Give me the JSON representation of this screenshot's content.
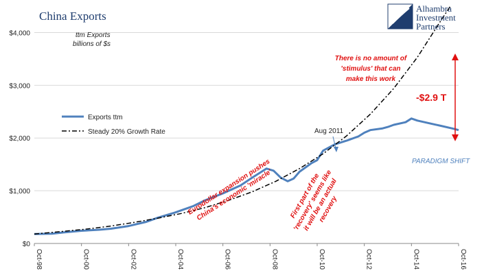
{
  "header": {
    "title": "China Exports",
    "units_line1": "ttm Exports",
    "units_line2": "billions of $s"
  },
  "logo": {
    "line1": "Alhambra",
    "line2": "Investment",
    "line3": "Partners"
  },
  "annotations": {
    "stimulus": [
      "There is no amount of",
      "'stimulus' that can",
      "make this work"
    ],
    "gap": "-$2.9 T",
    "aug": "Aug 2011",
    "paradigm": "PARADIGM SHIFT",
    "eurodollar": [
      "Eurodollar expansion pushes",
      "China's economic 'miracle'"
    ],
    "recovery": [
      "First part of the",
      "'recovery' seems like",
      "it will be an actual",
      "recovery"
    ]
  },
  "colors": {
    "exports": "#4f81bd",
    "growth": "#000000",
    "annotation": "#e01010",
    "title": "#1f3d6e"
  },
  "chart_data": {
    "type": "line",
    "title": "China Exports",
    "ylim": [
      0,
      4500
    ],
    "xlim": [
      1998.75,
      2016.75
    ],
    "y_ticks": [
      0,
      1000,
      2000,
      3000,
      4000
    ],
    "y_tick_labels": [
      "$0",
      "$1,000",
      "$2,000",
      "$3,000",
      "$4,000"
    ],
    "x_ticks": [
      1998.75,
      2000.75,
      2002.75,
      2004.75,
      2006.75,
      2008.75,
      2010.75,
      2012.75,
      2014.75,
      2016.75
    ],
    "x_tick_labels": [
      "Oct-98",
      "Oct-00",
      "Oct-02",
      "Oct-04",
      "Oct-06",
      "Oct-08",
      "Oct-10",
      "Oct-12",
      "Oct-14",
      "Oct-16"
    ],
    "legend": [
      "Exports ttm",
      "Steady 20% Growth Rate"
    ],
    "legend_position": "left",
    "series": [
      {
        "name": "Exports ttm",
        "style": "solid",
        "x": [
          1998.75,
          1999.5,
          2000.0,
          2000.75,
          2001.5,
          2002.0,
          2002.75,
          2003.5,
          2004.0,
          2004.75,
          2005.5,
          2006.0,
          2006.75,
          2007.5,
          2008.0,
          2008.6,
          2008.9,
          2009.2,
          2009.5,
          2009.75,
          2010.0,
          2010.5,
          2010.75,
          2011.0,
          2011.5,
          2012.0,
          2012.5,
          2012.75,
          2013.0,
          2013.5,
          2013.75,
          2014.0,
          2014.5,
          2014.75,
          2015.0,
          2015.5,
          2016.0,
          2016.5,
          2016.75
        ],
        "y": [
          180,
          185,
          210,
          240,
          260,
          280,
          330,
          410,
          490,
          590,
          710,
          820,
          950,
          1100,
          1250,
          1420,
          1380,
          1250,
          1180,
          1230,
          1360,
          1520,
          1580,
          1760,
          1880,
          1950,
          2030,
          2100,
          2150,
          2180,
          2210,
          2250,
          2300,
          2370,
          2330,
          2280,
          2230,
          2180,
          2150
        ]
      },
      {
        "name": "Steady 20% Growth Rate",
        "style": "dash-dot",
        "x": [
          1998.75,
          2000.0,
          2001.0,
          2002.0,
          2003.0,
          2004.0,
          2005.0,
          2006.0,
          2007.0,
          2008.0,
          2009.0,
          2010.0,
          2011.0,
          2012.0,
          2013.0,
          2014.0,
          2015.0,
          2016.0,
          2016.4
        ],
        "y": [
          180,
          230,
          275,
          330,
          400,
          480,
          570,
          680,
          820,
          980,
          1180,
          1420,
          1700,
          2040,
          2450,
          2940,
          3530,
          4230,
          4500
        ]
      }
    ]
  }
}
